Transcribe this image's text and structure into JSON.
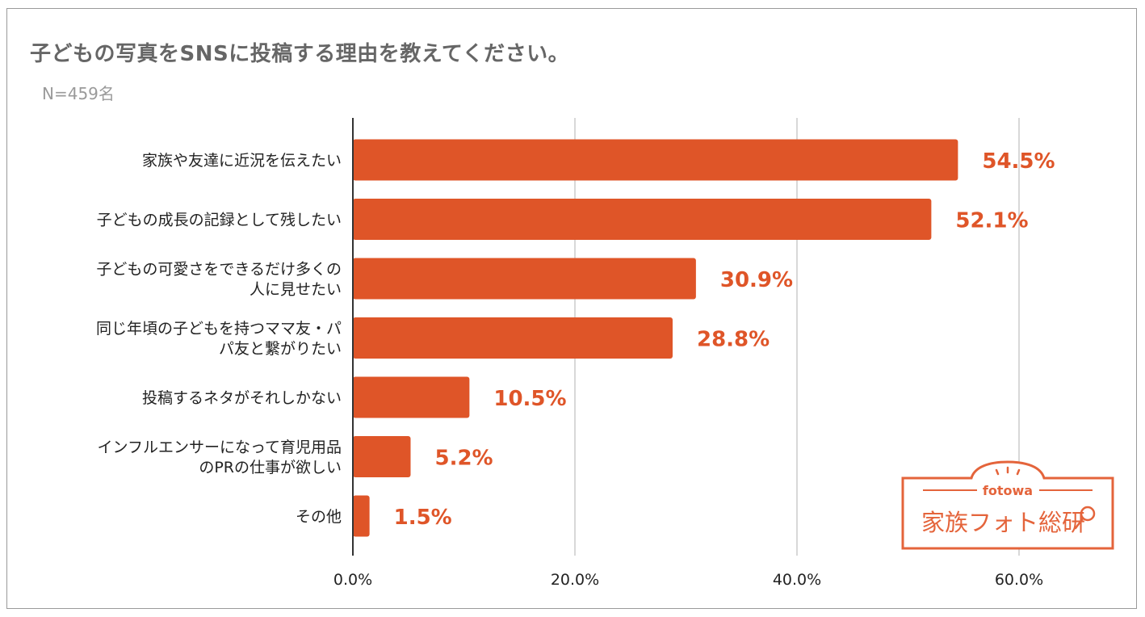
{
  "title": "子どもの写真をSNSに投稿する理由を教えてください。",
  "subtitle": "N=459名",
  "logo": {
    "top_text": "fotowa",
    "main_text": "家族フォト総研",
    "icon": "magnifier-icon"
  },
  "colors": {
    "bar": "#df5528",
    "label": "#df5528",
    "grid": "#cccccc",
    "axis": "#333333",
    "text": "#222222",
    "logo": "#e4643b"
  },
  "chart_data": {
    "type": "bar",
    "orientation": "horizontal",
    "title": "子どもの写真をSNSに投稿する理由を教えてください。",
    "subtitle": "N=459名",
    "categories": [
      [
        "家族や友達に近況を伝えたい"
      ],
      [
        "子どもの成長の記録として残したい"
      ],
      [
        "子どもの可愛さをできるだけ多くの",
        "人に見せたい"
      ],
      [
        "同じ年頃の子どもを持つママ友・パ",
        "パ友と繋がりたい"
      ],
      [
        "投稿するネタがそれしかない"
      ],
      [
        "インフルエンサーになって育児用品",
        "のPRの仕事が欲しい"
      ],
      [
        "その他"
      ]
    ],
    "values": [
      54.5,
      52.1,
      30.9,
      28.8,
      10.5,
      5.2,
      1.5
    ],
    "value_labels": [
      "54.5%",
      "52.1%",
      "30.9%",
      "28.8%",
      "10.5%",
      "5.2%",
      "1.5%"
    ],
    "xlim": [
      0,
      60
    ],
    "xticks": [
      0,
      20,
      40,
      60
    ],
    "xtick_labels": [
      "0.0%",
      "20.0%",
      "40.0%",
      "60.0%"
    ],
    "grid": true,
    "legend": "none"
  }
}
